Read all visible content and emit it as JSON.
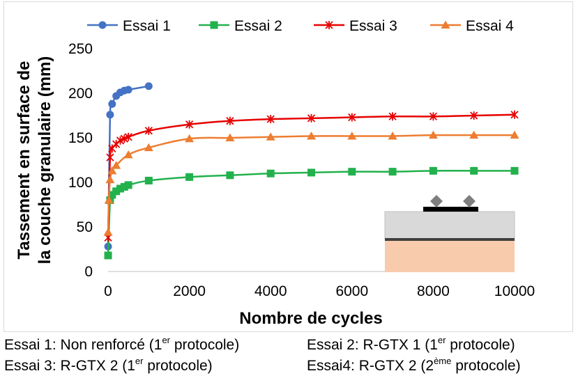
{
  "chart_data": {
    "type": "line",
    "title": "",
    "xlabel": "Nombre de cycles",
    "ylabel_lines": [
      "Tassement en surface de",
      "la couche granulaire (mm)"
    ],
    "xlim": [
      0,
      10000
    ],
    "ylim": [
      0,
      250
    ],
    "xticks": [
      0,
      2000,
      4000,
      6000,
      8000,
      10000
    ],
    "yticks": [
      0,
      50,
      100,
      150,
      200,
      250
    ],
    "grid": false,
    "legend_position": "top",
    "series": [
      {
        "name": "Essai 1",
        "color": "#4472C4",
        "marker": "circle",
        "x": [
          1,
          50,
          100,
          200,
          300,
          400,
          500,
          1000
        ],
        "y": [
          28,
          176,
          188,
          197,
          201,
          203,
          204,
          208
        ]
      },
      {
        "name": "Essai 2",
        "color": "#22B14C",
        "marker": "square",
        "x": [
          1,
          50,
          100,
          200,
          300,
          400,
          500,
          1000,
          2000,
          3000,
          4000,
          5000,
          6000,
          7000,
          8000,
          9000,
          10000
        ],
        "y": [
          18,
          80,
          86,
          90,
          93,
          95,
          97,
          102,
          106,
          108,
          110,
          111,
          112,
          112,
          113,
          113,
          113
        ]
      },
      {
        "name": "Essai 3",
        "color": "#E60000",
        "marker": "x-star",
        "x": [
          1,
          50,
          100,
          200,
          300,
          400,
          500,
          1000,
          2000,
          3000,
          4000,
          5000,
          6000,
          7000,
          8000,
          9000,
          10000
        ],
        "y": [
          38,
          128,
          138,
          143,
          147,
          149,
          151,
          158,
          165,
          169,
          171,
          172,
          173,
          174,
          174,
          175,
          176
        ]
      },
      {
        "name": "Essai 4",
        "color": "#ED7D31",
        "marker": "triangle",
        "x": [
          1,
          20,
          50,
          100,
          200,
          500,
          1000,
          2000,
          3000,
          4000,
          5000,
          6000,
          7000,
          8000,
          9000,
          10000
        ],
        "y": [
          44,
          80,
          103,
          113,
          119,
          131,
          139,
          149,
          150,
          151,
          152,
          152,
          152,
          153,
          153,
          153
        ]
      }
    ]
  },
  "captions": [
    {
      "main": "Essai 1: Non renforcé (1",
      "sup": "er",
      "end": " protocole)"
    },
    {
      "main": "Essai 2: R-GTX 1 (1",
      "sup": "er",
      "end": " protocole)"
    },
    {
      "main": "Essai 3: R-GTX 2 (1",
      "sup": "er",
      "end": " protocole)"
    },
    {
      "main": "Essai4: R-GTX 2 (2",
      "sup": "ème",
      "end": " protocole)"
    }
  ],
  "inset": {
    "colors": {
      "load_plate": "#000000",
      "load_point": "#7f7f7f",
      "upper_layer": "#d9d9d9",
      "reinforcement": "#404040",
      "subgrade": "#f8cbad",
      "edge": "#bfbfbf"
    }
  }
}
